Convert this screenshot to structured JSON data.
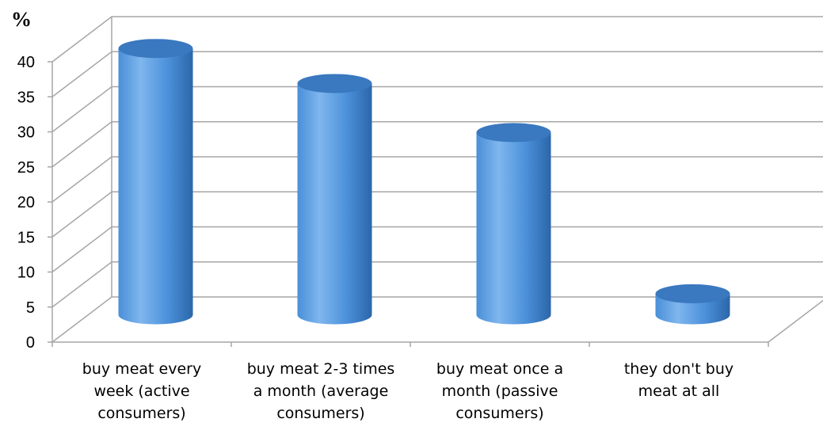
{
  "chart_data": {
    "type": "bar",
    "ylabel": "%",
    "ylim": [
      0,
      40
    ],
    "yticks": [
      "0",
      "5",
      "10",
      "15",
      "20",
      "25",
      "30",
      "35",
      "40"
    ],
    "grid": true,
    "categories": [
      "buy meat every week (active consumers)",
      "buy meat 2-3 times a month (average consumers)",
      "buy meat once a month (passive consumers)",
      "they don't buy meat at all"
    ],
    "category_lines": [
      "buy meat every\nweek (active\nconsumers)",
      "buy meat 2-3 times\na month (average\nconsumers)",
      "buy meat once a\nmonth (passive\nconsumers)",
      "they don't buy\nmeat at all"
    ],
    "values": [
      38,
      33,
      26,
      3
    ],
    "colors": {
      "bar_light": "#7fb3ea",
      "bar_mid": "#4a90d9",
      "bar_dark": "#2e6fb5",
      "bar_top": "#3a78bf",
      "grid": "#a6a6a6"
    }
  }
}
